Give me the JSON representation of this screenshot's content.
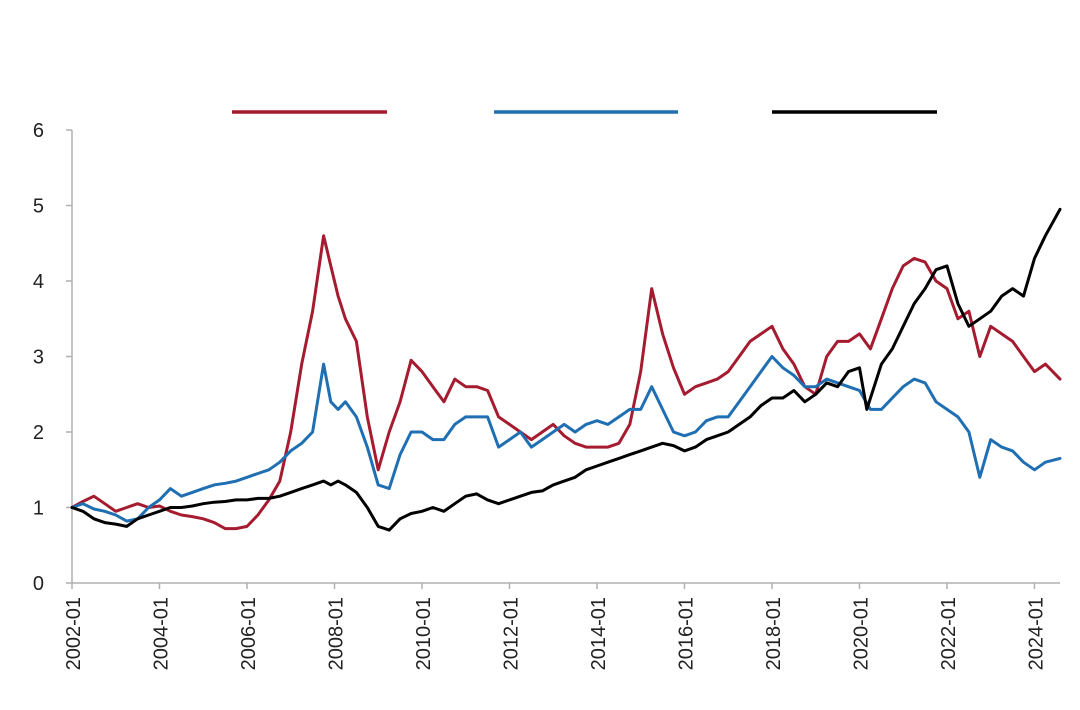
{
  "chart_data": {
    "type": "line",
    "title": "",
    "xlabel": "",
    "ylabel": "",
    "ylim": [
      0,
      6
    ],
    "yticks": [
      0,
      1,
      2,
      3,
      4,
      5,
      6
    ],
    "xlim": [
      "2002-01",
      "2024-08"
    ],
    "xticks": [
      "2002-01",
      "2004-01",
      "2006-01",
      "2008-01",
      "2010-01",
      "2012-01",
      "2014-01",
      "2016-01",
      "2018-01",
      "2020-01",
      "2022-01",
      "2024-01"
    ],
    "grid": false,
    "legend": {
      "placement": "top",
      "entries_text_visible": false
    },
    "series": [
      {
        "color": "#a51c30",
        "points": [
          [
            "2002-01",
            1.0
          ],
          [
            "2002-04",
            1.08
          ],
          [
            "2002-07",
            1.15
          ],
          [
            "2002-10",
            1.05
          ],
          [
            "2003-01",
            0.95
          ],
          [
            "2003-04",
            1.0
          ],
          [
            "2003-07",
            1.05
          ],
          [
            "2003-10",
            1.0
          ],
          [
            "2004-01",
            1.02
          ],
          [
            "2004-04",
            0.95
          ],
          [
            "2004-07",
            0.9
          ],
          [
            "2004-10",
            0.88
          ],
          [
            "2005-01",
            0.85
          ],
          [
            "2005-04",
            0.8
          ],
          [
            "2005-07",
            0.72
          ],
          [
            "2005-10",
            0.72
          ],
          [
            "2006-01",
            0.75
          ],
          [
            "2006-04",
            0.9
          ],
          [
            "2006-07",
            1.1
          ],
          [
            "2006-10",
            1.35
          ],
          [
            "2007-01",
            2.0
          ],
          [
            "2007-04",
            2.9
          ],
          [
            "2007-07",
            3.6
          ],
          [
            "2007-10",
            4.6
          ],
          [
            "2007-12",
            4.2
          ],
          [
            "2008-02",
            3.8
          ],
          [
            "2008-04",
            3.5
          ],
          [
            "2008-07",
            3.2
          ],
          [
            "2008-10",
            2.2
          ],
          [
            "2009-01",
            1.5
          ],
          [
            "2009-04",
            2.0
          ],
          [
            "2009-07",
            2.4
          ],
          [
            "2009-10",
            2.95
          ],
          [
            "2010-01",
            2.8
          ],
          [
            "2010-04",
            2.6
          ],
          [
            "2010-07",
            2.4
          ],
          [
            "2010-10",
            2.7
          ],
          [
            "2011-01",
            2.6
          ],
          [
            "2011-04",
            2.6
          ],
          [
            "2011-07",
            2.55
          ],
          [
            "2011-10",
            2.2
          ],
          [
            "2012-01",
            2.1
          ],
          [
            "2012-04",
            2.0
          ],
          [
            "2012-07",
            1.9
          ],
          [
            "2012-10",
            2.0
          ],
          [
            "2013-01",
            2.1
          ],
          [
            "2013-04",
            1.95
          ],
          [
            "2013-07",
            1.85
          ],
          [
            "2013-10",
            1.8
          ],
          [
            "2014-01",
            1.8
          ],
          [
            "2014-04",
            1.8
          ],
          [
            "2014-07",
            1.85
          ],
          [
            "2014-10",
            2.1
          ],
          [
            "2015-01",
            2.8
          ],
          [
            "2015-04",
            3.9
          ],
          [
            "2015-07",
            3.3
          ],
          [
            "2015-10",
            2.85
          ],
          [
            "2016-01",
            2.5
          ],
          [
            "2016-04",
            2.6
          ],
          [
            "2016-07",
            2.65
          ],
          [
            "2016-10",
            2.7
          ],
          [
            "2017-01",
            2.8
          ],
          [
            "2017-04",
            3.0
          ],
          [
            "2017-07",
            3.2
          ],
          [
            "2017-10",
            3.3
          ],
          [
            "2018-01",
            3.4
          ],
          [
            "2018-04",
            3.1
          ],
          [
            "2018-07",
            2.9
          ],
          [
            "2018-10",
            2.6
          ],
          [
            "2019-01",
            2.5
          ],
          [
            "2019-04",
            3.0
          ],
          [
            "2019-07",
            3.2
          ],
          [
            "2019-10",
            3.2
          ],
          [
            "2020-01",
            3.3
          ],
          [
            "2020-04",
            3.1
          ],
          [
            "2020-07",
            3.5
          ],
          [
            "2020-10",
            3.9
          ],
          [
            "2021-01",
            4.2
          ],
          [
            "2021-04",
            4.3
          ],
          [
            "2021-07",
            4.25
          ],
          [
            "2021-10",
            4.0
          ],
          [
            "2022-01",
            3.9
          ],
          [
            "2022-04",
            3.5
          ],
          [
            "2022-07",
            3.6
          ],
          [
            "2022-10",
            3.0
          ],
          [
            "2023-01",
            3.4
          ],
          [
            "2023-04",
            3.3
          ],
          [
            "2023-07",
            3.2
          ],
          [
            "2023-10",
            3.0
          ],
          [
            "2024-01",
            2.8
          ],
          [
            "2024-04",
            2.9
          ],
          [
            "2024-08",
            2.7
          ]
        ]
      },
      {
        "color": "#1f6fb2",
        "points": [
          [
            "2002-01",
            1.0
          ],
          [
            "2002-04",
            1.05
          ],
          [
            "2002-07",
            0.98
          ],
          [
            "2002-10",
            0.95
          ],
          [
            "2003-01",
            0.9
          ],
          [
            "2003-04",
            0.82
          ],
          [
            "2003-07",
            0.85
          ],
          [
            "2003-10",
            1.0
          ],
          [
            "2004-01",
            1.1
          ],
          [
            "2004-04",
            1.25
          ],
          [
            "2004-07",
            1.15
          ],
          [
            "2004-10",
            1.2
          ],
          [
            "2005-01",
            1.25
          ],
          [
            "2005-04",
            1.3
          ],
          [
            "2005-07",
            1.32
          ],
          [
            "2005-10",
            1.35
          ],
          [
            "2006-01",
            1.4
          ],
          [
            "2006-04",
            1.45
          ],
          [
            "2006-07",
            1.5
          ],
          [
            "2006-10",
            1.6
          ],
          [
            "2007-01",
            1.75
          ],
          [
            "2007-04",
            1.85
          ],
          [
            "2007-07",
            2.0
          ],
          [
            "2007-10",
            2.9
          ],
          [
            "2007-12",
            2.4
          ],
          [
            "2008-02",
            2.3
          ],
          [
            "2008-04",
            2.4
          ],
          [
            "2008-07",
            2.2
          ],
          [
            "2008-10",
            1.8
          ],
          [
            "2009-01",
            1.3
          ],
          [
            "2009-04",
            1.25
          ],
          [
            "2009-07",
            1.7
          ],
          [
            "2009-10",
            2.0
          ],
          [
            "2010-01",
            2.0
          ],
          [
            "2010-04",
            1.9
          ],
          [
            "2010-07",
            1.9
          ],
          [
            "2010-10",
            2.1
          ],
          [
            "2011-01",
            2.2
          ],
          [
            "2011-04",
            2.2
          ],
          [
            "2011-07",
            2.2
          ],
          [
            "2011-10",
            1.8
          ],
          [
            "2012-01",
            1.9
          ],
          [
            "2012-04",
            2.0
          ],
          [
            "2012-07",
            1.8
          ],
          [
            "2012-10",
            1.9
          ],
          [
            "2013-01",
            2.0
          ],
          [
            "2013-04",
            2.1
          ],
          [
            "2013-07",
            2.0
          ],
          [
            "2013-10",
            2.1
          ],
          [
            "2014-01",
            2.15
          ],
          [
            "2014-04",
            2.1
          ],
          [
            "2014-07",
            2.2
          ],
          [
            "2014-10",
            2.3
          ],
          [
            "2015-01",
            2.3
          ],
          [
            "2015-04",
            2.6
          ],
          [
            "2015-07",
            2.3
          ],
          [
            "2015-10",
            2.0
          ],
          [
            "2016-01",
            1.95
          ],
          [
            "2016-04",
            2.0
          ],
          [
            "2016-07",
            2.15
          ],
          [
            "2016-10",
            2.2
          ],
          [
            "2017-01",
            2.2
          ],
          [
            "2017-04",
            2.4
          ],
          [
            "2017-07",
            2.6
          ],
          [
            "2017-10",
            2.8
          ],
          [
            "2018-01",
            3.0
          ],
          [
            "2018-04",
            2.85
          ],
          [
            "2018-07",
            2.75
          ],
          [
            "2018-10",
            2.6
          ],
          [
            "2019-01",
            2.6
          ],
          [
            "2019-04",
            2.7
          ],
          [
            "2019-07",
            2.65
          ],
          [
            "2019-10",
            2.6
          ],
          [
            "2020-01",
            2.55
          ],
          [
            "2020-04",
            2.3
          ],
          [
            "2020-07",
            2.3
          ],
          [
            "2020-10",
            2.45
          ],
          [
            "2021-01",
            2.6
          ],
          [
            "2021-04",
            2.7
          ],
          [
            "2021-07",
            2.65
          ],
          [
            "2021-10",
            2.4
          ],
          [
            "2022-01",
            2.3
          ],
          [
            "2022-04",
            2.2
          ],
          [
            "2022-07",
            2.0
          ],
          [
            "2022-10",
            1.4
          ],
          [
            "2023-01",
            1.9
          ],
          [
            "2023-04",
            1.8
          ],
          [
            "2023-07",
            1.75
          ],
          [
            "2023-10",
            1.6
          ],
          [
            "2024-01",
            1.5
          ],
          [
            "2024-04",
            1.6
          ],
          [
            "2024-08",
            1.65
          ]
        ]
      },
      {
        "color": "#000000",
        "points": [
          [
            "2002-01",
            1.0
          ],
          [
            "2002-04",
            0.95
          ],
          [
            "2002-07",
            0.85
          ],
          [
            "2002-10",
            0.8
          ],
          [
            "2003-01",
            0.78
          ],
          [
            "2003-04",
            0.75
          ],
          [
            "2003-07",
            0.85
          ],
          [
            "2003-10",
            0.9
          ],
          [
            "2004-01",
            0.95
          ],
          [
            "2004-04",
            1.0
          ],
          [
            "2004-07",
            1.0
          ],
          [
            "2004-10",
            1.02
          ],
          [
            "2005-01",
            1.05
          ],
          [
            "2005-04",
            1.07
          ],
          [
            "2005-07",
            1.08
          ],
          [
            "2005-10",
            1.1
          ],
          [
            "2006-01",
            1.1
          ],
          [
            "2006-04",
            1.12
          ],
          [
            "2006-07",
            1.12
          ],
          [
            "2006-10",
            1.15
          ],
          [
            "2007-01",
            1.2
          ],
          [
            "2007-04",
            1.25
          ],
          [
            "2007-07",
            1.3
          ],
          [
            "2007-10",
            1.35
          ],
          [
            "2007-12",
            1.3
          ],
          [
            "2008-02",
            1.35
          ],
          [
            "2008-04",
            1.3
          ],
          [
            "2008-07",
            1.2
          ],
          [
            "2008-10",
            1.0
          ],
          [
            "2009-01",
            0.75
          ],
          [
            "2009-04",
            0.7
          ],
          [
            "2009-07",
            0.85
          ],
          [
            "2009-10",
            0.92
          ],
          [
            "2010-01",
            0.95
          ],
          [
            "2010-04",
            1.0
          ],
          [
            "2010-07",
            0.95
          ],
          [
            "2010-10",
            1.05
          ],
          [
            "2011-01",
            1.15
          ],
          [
            "2011-04",
            1.18
          ],
          [
            "2011-07",
            1.1
          ],
          [
            "2011-10",
            1.05
          ],
          [
            "2012-01",
            1.1
          ],
          [
            "2012-04",
            1.15
          ],
          [
            "2012-07",
            1.2
          ],
          [
            "2012-10",
            1.22
          ],
          [
            "2013-01",
            1.3
          ],
          [
            "2013-04",
            1.35
          ],
          [
            "2013-07",
            1.4
          ],
          [
            "2013-10",
            1.5
          ],
          [
            "2014-01",
            1.55
          ],
          [
            "2014-04",
            1.6
          ],
          [
            "2014-07",
            1.65
          ],
          [
            "2014-10",
            1.7
          ],
          [
            "2015-01",
            1.75
          ],
          [
            "2015-04",
            1.8
          ],
          [
            "2015-07",
            1.85
          ],
          [
            "2015-10",
            1.82
          ],
          [
            "2016-01",
            1.75
          ],
          [
            "2016-04",
            1.8
          ],
          [
            "2016-07",
            1.9
          ],
          [
            "2016-10",
            1.95
          ],
          [
            "2017-01",
            2.0
          ],
          [
            "2017-04",
            2.1
          ],
          [
            "2017-07",
            2.2
          ],
          [
            "2017-10",
            2.35
          ],
          [
            "2018-01",
            2.45
          ],
          [
            "2018-04",
            2.45
          ],
          [
            "2018-07",
            2.55
          ],
          [
            "2018-10",
            2.4
          ],
          [
            "2019-01",
            2.5
          ],
          [
            "2019-04",
            2.65
          ],
          [
            "2019-07",
            2.6
          ],
          [
            "2019-10",
            2.8
          ],
          [
            "2020-01",
            2.85
          ],
          [
            "2020-03",
            2.3
          ],
          [
            "2020-07",
            2.9
          ],
          [
            "2020-10",
            3.1
          ],
          [
            "2021-01",
            3.4
          ],
          [
            "2021-04",
            3.7
          ],
          [
            "2021-07",
            3.9
          ],
          [
            "2021-10",
            4.15
          ],
          [
            "2022-01",
            4.2
          ],
          [
            "2022-04",
            3.7
          ],
          [
            "2022-07",
            3.4
          ],
          [
            "2022-10",
            3.5
          ],
          [
            "2023-01",
            3.6
          ],
          [
            "2023-04",
            3.8
          ],
          [
            "2023-07",
            3.9
          ],
          [
            "2023-10",
            3.8
          ],
          [
            "2024-01",
            4.3
          ],
          [
            "2024-04",
            4.6
          ],
          [
            "2024-08",
            4.95
          ]
        ]
      }
    ]
  }
}
